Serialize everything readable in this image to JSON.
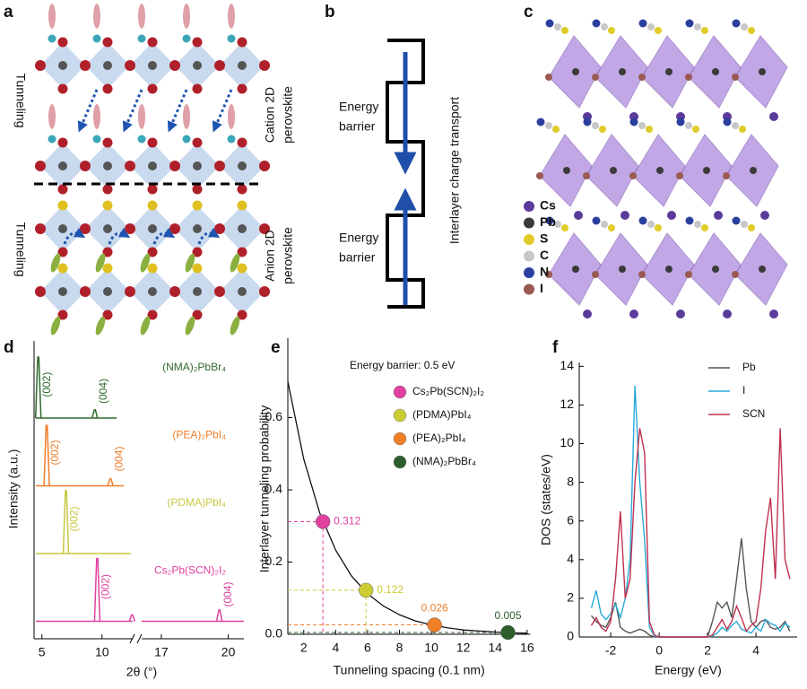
{
  "panel_labels": [
    "a",
    "b",
    "c",
    "d",
    "e",
    "f"
  ],
  "panel_a": {
    "tunneling_labels": [
      "Tunneling",
      "Tunneling"
    ],
    "cation_label": [
      "Cation 2D",
      "perovskite"
    ],
    "anion_label": [
      "Anion 2D",
      "perovskite"
    ]
  },
  "panel_b": {
    "barrier_labels": [
      [
        "Energy",
        "barrier"
      ],
      [
        "Energy",
        "barrier"
      ]
    ],
    "axis_label": "Interlayer charge transport"
  },
  "panel_c": {
    "legend": [
      {
        "name": "Cs",
        "color": "#5a3b9a"
      },
      {
        "name": "Pb",
        "color": "#3a3a3a"
      },
      {
        "name": "S",
        "color": "#e0cc2a"
      },
      {
        "name": "C",
        "color": "#c8c8c8"
      },
      {
        "name": "N",
        "color": "#2b3f9e"
      },
      {
        "name": "I",
        "color": "#9a5a52"
      }
    ]
  },
  "chart_data": [
    {
      "type": "stacked-peaks",
      "xlabel": "2θ (°)",
      "ylabel": "Intensity (a.u.)",
      "xlim": [
        4.5,
        20.7
      ],
      "xbreak": [
        12.7,
        16.2
      ],
      "xticks": [
        5,
        10,
        17,
        20
      ],
      "series": [
        {
          "name": "(NMA)₂PbBr₄",
          "color": "#2e6b2e",
          "peaks": [
            4.7,
            9.4
          ],
          "intensities": [
            0.97,
            0.13
          ],
          "peak_labels": [
            "(002)",
            "(004)"
          ]
        },
        {
          "name": "(PEA)₂PbI₄",
          "color": "#f07d2a",
          "peaks": [
            5.4,
            10.7
          ],
          "intensities": [
            0.96,
            0.11
          ],
          "peak_labels": [
            "(002)",
            "(004)"
          ]
        },
        {
          "name": "(PDMA)PbI₄",
          "color": "#c8c840",
          "peaks": [
            7.0
          ],
          "intensities": [
            1.0
          ],
          "peak_labels": [
            "(002)"
          ]
        },
        {
          "name": "Cs₂Pb(SCN)₂I₂",
          "color": "#e0409f",
          "peaks": [
            9.6,
            12.5,
            19.6
          ],
          "intensities": [
            1.0,
            0.1,
            0.18
          ],
          "peak_labels": [
            "(002)",
            null,
            "(004)"
          ]
        }
      ]
    },
    {
      "type": "scatter",
      "annotation": "Energy barrier: 0.5 eV",
      "xlabel": "Tunneling spacing (0.1 nm)",
      "ylabel": "Interlayer tunneling probability",
      "xlim": [
        1,
        16.2
      ],
      "ylim": [
        0,
        0.82
      ],
      "xticks": [
        2,
        4,
        6,
        8,
        10,
        12,
        14,
        16
      ],
      "yticks": [
        {
          "value": 0,
          "label": "0.0"
        },
        0.2,
        0.4,
        0.6
      ],
      "curve": {
        "color": "#111111",
        "x": [
          1,
          2,
          3,
          4,
          5,
          6,
          7,
          8,
          9,
          10,
          11,
          12,
          13,
          14,
          15,
          16
        ],
        "values": [
          0.7,
          0.485,
          0.336,
          0.233,
          0.161,
          0.112,
          0.078,
          0.054,
          0.037,
          0.026,
          0.018,
          0.012,
          0.009,
          0.006,
          0.004,
          0.003
        ]
      },
      "series": [
        {
          "name": "Cs₂Pb(SCN)₂I₂",
          "color": "#e0409f",
          "x": [
            3.2
          ],
          "values": [
            0.312
          ]
        },
        {
          "name": "(PDMA)PbI₄",
          "color": "#cccc33",
          "x": [
            5.9
          ],
          "values": [
            0.122
          ]
        },
        {
          "name": "(PEA)₂PbI₄",
          "color": "#f07f28",
          "x": [
            10.2
          ],
          "values": [
            0.026
          ]
        },
        {
          "name": "(NMA)₂PbBr₄",
          "color": "#2c5e2c",
          "x": [
            14.8
          ],
          "values": [
            0.005
          ]
        }
      ]
    },
    {
      "type": "line",
      "xlabel": "Energy (eV)",
      "ylabel": "DOS (states/eV)",
      "xlim": [
        -3.3,
        5.7
      ],
      "ylim": [
        0,
        14.2
      ],
      "xticks": [
        -2,
        0,
        2,
        4
      ],
      "yticks": [
        0,
        2,
        4,
        6,
        8,
        10,
        12,
        14
      ],
      "x": [
        -2.8,
        -2.6,
        -2.4,
        -2.2,
        -2.0,
        -1.8,
        -1.6,
        -1.4,
        -1.2,
        -1.0,
        -0.8,
        -0.6,
        -0.4,
        -0.2,
        0,
        0.5,
        1.0,
        1.5,
        2.0,
        2.2,
        2.4,
        2.6,
        2.8,
        3.0,
        3.2,
        3.4,
        3.6,
        3.8,
        4.0,
        4.2,
        4.4,
        4.6,
        4.8,
        5.0,
        5.2,
        5.4
      ],
      "series": [
        {
          "name": "Pb",
          "color": "#555555",
          "values": [
            1.1,
            0.8,
            0.6,
            0.5,
            1.0,
            1.8,
            0.5,
            0.3,
            0.2,
            0.3,
            0.4,
            0.3,
            0.1,
            0,
            0,
            0,
            0,
            0,
            0,
            0.8,
            1.8,
            1.5,
            1.8,
            1.0,
            3.0,
            5.1,
            2.5,
            0.8,
            0.5,
            0.8,
            0.9,
            0.5,
            0.4,
            0.5,
            0.8,
            0.3
          ]
        },
        {
          "name": "I",
          "color": "#29a9d8",
          "values": [
            1.5,
            2.4,
            1.2,
            0.9,
            1.2,
            1.7,
            1.0,
            2.0,
            4.0,
            13.0,
            8.0,
            5.0,
            0.5,
            0.05,
            0,
            0,
            0,
            0,
            0,
            0.05,
            0.2,
            0.5,
            0.3,
            0.6,
            0.8,
            0.4,
            0.3,
            0.2,
            0.5,
            0.3,
            0.9,
            0.7,
            0.6,
            0.3,
            0.7,
            0.5
          ]
        },
        {
          "name": "SCN",
          "color": "#c03050",
          "values": [
            0.6,
            1.0,
            0.5,
            0.3,
            0.8,
            3.0,
            6.5,
            2.0,
            3.0,
            8.0,
            10.8,
            9.5,
            0.8,
            0.1,
            0,
            0,
            0,
            0,
            0,
            0.1,
            0.5,
            0.9,
            0.4,
            0.8,
            1.6,
            1.0,
            0.3,
            0.6,
            0.8,
            2.5,
            5.5,
            7.2,
            3.0,
            10.8,
            4.0,
            3.0
          ]
        }
      ]
    }
  ]
}
